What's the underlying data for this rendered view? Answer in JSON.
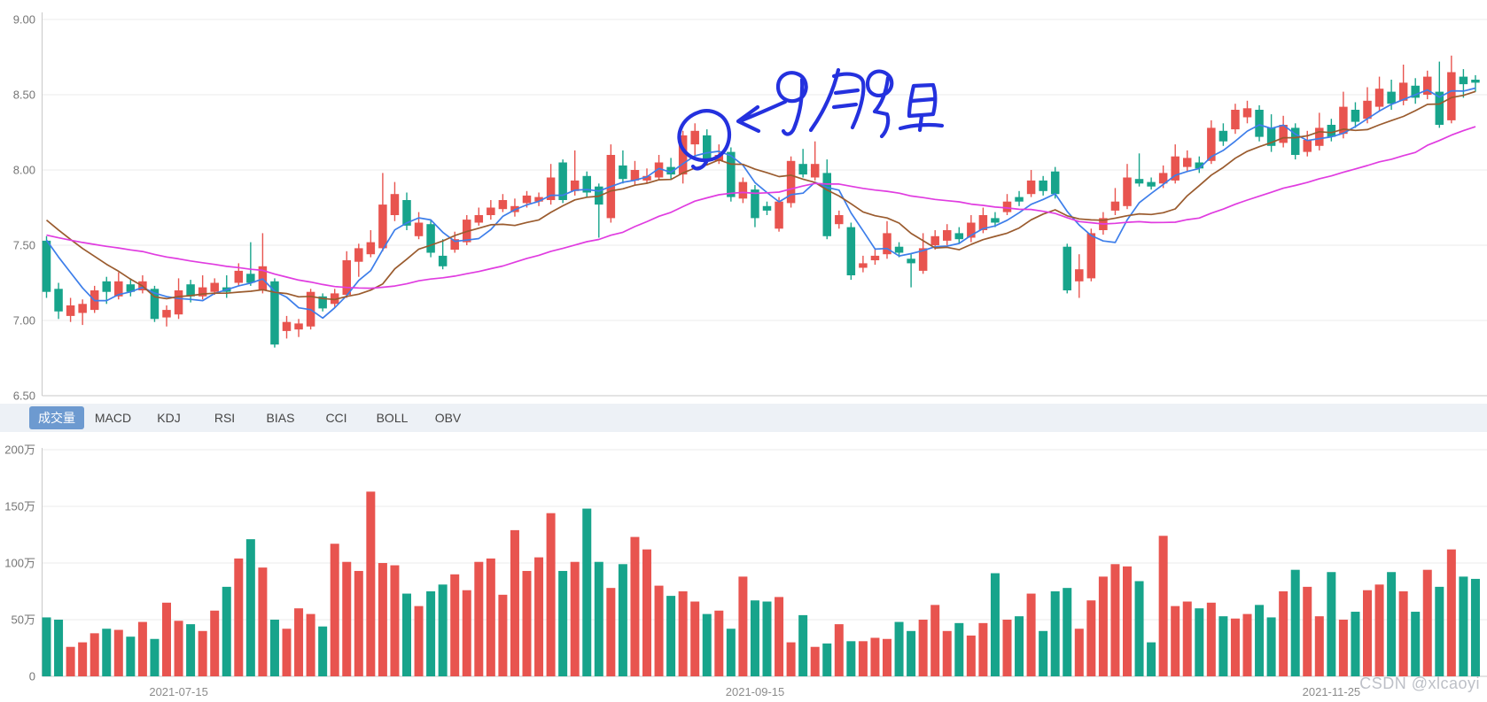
{
  "app": {
    "description": "stock K-line chart with volume pane"
  },
  "tabs": {
    "items": [
      {
        "id": "volume",
        "label": "成交量",
        "selected": true
      },
      {
        "id": "macd",
        "label": "MACD",
        "selected": false
      },
      {
        "id": "kdj",
        "label": "KDJ",
        "selected": false
      },
      {
        "id": "rsi",
        "label": "RSI",
        "selected": false
      },
      {
        "id": "bias",
        "label": "BIAS",
        "selected": false
      },
      {
        "id": "cci",
        "label": "CCI",
        "selected": false
      },
      {
        "id": "boll",
        "label": "BOLL",
        "selected": false
      },
      {
        "id": "obv",
        "label": "OBV",
        "selected": false
      }
    ],
    "selected_bg": "#6d9ad0",
    "strip_bg": "#edf1f6"
  },
  "annotation": {
    "text": "9月9日",
    "meaning": "hand-drawn circle and arrow pointing at the 2021-09-09 candle",
    "color": "#2431de"
  },
  "watermark": "CSDN @xlcaoyi",
  "colors": {
    "up": "#e8544f",
    "down": "#17a48b",
    "ma5": "#3d7eea",
    "ma10": "#9a5b2e",
    "ma30": "#e03ce0",
    "grid": "#ebebeb",
    "axis": "#c9c9c9",
    "tick_text": "#757575"
  },
  "chart_data": [
    {
      "type": "candlestick",
      "title": "",
      "ylabel": "",
      "ylim": [
        6.5,
        9.0
      ],
      "y_tick_labels": [
        "9.00",
        "8.50",
        "8.00",
        "7.50",
        "7.00",
        "6.50"
      ],
      "grid": true,
      "up_color": "#e8544f",
      "down_color": "#17a48b",
      "x_ticks": [
        {
          "index": 11,
          "label": "2021-07-15"
        },
        {
          "index": 59,
          "label": "2021-09-15"
        },
        {
          "index": 107,
          "label": "2021-11-25"
        }
      ],
      "ma_lines": [
        {
          "name": "MA5",
          "window": 5,
          "seed": 7.62,
          "color": "#3d7eea"
        },
        {
          "name": "MA10",
          "window": 10,
          "seed": 7.72,
          "color": "#9a5b2e"
        },
        {
          "name": "MA30",
          "window": 30,
          "seed": 7.58,
          "color": "#e03ce0"
        }
      ],
      "candles_format": [
        "open",
        "close",
        "low",
        "high"
      ],
      "candles": [
        [
          7.53,
          7.19,
          7.15,
          7.56
        ],
        [
          7.21,
          7.06,
          7.01,
          7.25
        ],
        [
          7.03,
          7.1,
          6.99,
          7.15
        ],
        [
          7.05,
          7.11,
          6.97,
          7.14
        ],
        [
          7.07,
          7.2,
          7.05,
          7.23
        ],
        [
          7.26,
          7.19,
          7.11,
          7.29
        ],
        [
          7.16,
          7.26,
          7.14,
          7.32
        ],
        [
          7.24,
          7.19,
          7.16,
          7.28
        ],
        [
          7.2,
          7.26,
          7.18,
          7.3
        ],
        [
          7.21,
          7.01,
          6.99,
          7.23
        ],
        [
          7.02,
          7.07,
          6.96,
          7.1
        ],
        [
          7.04,
          7.2,
          7.01,
          7.28
        ],
        [
          7.24,
          7.16,
          7.12,
          7.27
        ],
        [
          7.16,
          7.22,
          7.14,
          7.3
        ],
        [
          7.19,
          7.25,
          7.17,
          7.28
        ],
        [
          7.22,
          7.19,
          7.15,
          7.3
        ],
        [
          7.25,
          7.33,
          7.23,
          7.38
        ],
        [
          7.31,
          7.25,
          7.23,
          7.52
        ],
        [
          7.2,
          7.36,
          7.18,
          7.58
        ],
        [
          7.26,
          6.84,
          6.82,
          7.28
        ],
        [
          6.93,
          6.99,
          6.88,
          7.03
        ],
        [
          6.94,
          6.98,
          6.89,
          7.01
        ],
        [
          6.96,
          7.19,
          6.94,
          7.21
        ],
        [
          7.16,
          7.08,
          7.06,
          7.18
        ],
        [
          7.11,
          7.18,
          7.09,
          7.21
        ],
        [
          7.17,
          7.4,
          7.15,
          7.46
        ],
        [
          7.39,
          7.48,
          7.29,
          7.51
        ],
        [
          7.44,
          7.52,
          7.42,
          7.6
        ],
        [
          7.48,
          7.77,
          7.46,
          7.98
        ],
        [
          7.7,
          7.84,
          7.66,
          7.92
        ],
        [
          7.8,
          7.63,
          7.6,
          7.85
        ],
        [
          7.56,
          7.65,
          7.54,
          7.72
        ],
        [
          7.64,
          7.45,
          7.42,
          7.67
        ],
        [
          7.43,
          7.36,
          7.34,
          7.54
        ],
        [
          7.47,
          7.54,
          7.45,
          7.59
        ],
        [
          7.52,
          7.67,
          7.5,
          7.7
        ],
        [
          7.65,
          7.7,
          7.63,
          7.75
        ],
        [
          7.7,
          7.75,
          7.67,
          7.8
        ],
        [
          7.74,
          7.8,
          7.72,
          7.84
        ],
        [
          7.72,
          7.76,
          7.69,
          7.81
        ],
        [
          7.78,
          7.83,
          7.75,
          7.86
        ],
        [
          7.79,
          7.82,
          7.76,
          7.85
        ],
        [
          7.8,
          7.95,
          7.77,
          8.04
        ],
        [
          8.05,
          7.8,
          7.78,
          8.07
        ],
        [
          7.86,
          7.93,
          7.83,
          8.13
        ],
        [
          7.96,
          7.85,
          7.82,
          7.99
        ],
        [
          7.89,
          7.77,
          7.55,
          7.91
        ],
        [
          7.68,
          8.1,
          7.65,
          8.17
        ],
        [
          8.03,
          7.94,
          7.91,
          8.13
        ],
        [
          7.93,
          8.0,
          7.9,
          8.06
        ],
        [
          7.93,
          7.96,
          7.91,
          8.01
        ],
        [
          7.95,
          8.05,
          7.93,
          8.1
        ],
        [
          8.02,
          7.97,
          7.94,
          8.08
        ],
        [
          7.97,
          8.23,
          7.91,
          8.26
        ],
        [
          8.17,
          8.26,
          8.08,
          8.31
        ],
        [
          8.23,
          8.06,
          8.03,
          8.27
        ],
        [
          8.06,
          8.1,
          8.04,
          8.17
        ],
        [
          8.12,
          7.82,
          7.79,
          8.15
        ],
        [
          7.81,
          7.92,
          7.78,
          7.95
        ],
        [
          7.87,
          7.68,
          7.62,
          7.9
        ],
        [
          7.76,
          7.73,
          7.7,
          7.79
        ],
        [
          7.61,
          7.79,
          7.59,
          7.82
        ],
        [
          7.78,
          8.06,
          7.75,
          8.09
        ],
        [
          8.04,
          7.97,
          7.95,
          8.14
        ],
        [
          7.95,
          8.04,
          7.93,
          8.19
        ],
        [
          7.98,
          7.56,
          7.54,
          8.07
        ],
        [
          7.64,
          7.7,
          7.61,
          7.73
        ],
        [
          7.62,
          7.3,
          7.27,
          7.65
        ],
        [
          7.35,
          7.38,
          7.32,
          7.43
        ],
        [
          7.4,
          7.43,
          7.37,
          7.48
        ],
        [
          7.44,
          7.58,
          7.41,
          7.66
        ],
        [
          7.49,
          7.45,
          7.42,
          7.52
        ],
        [
          7.41,
          7.38,
          7.22,
          7.44
        ],
        [
          7.33,
          7.48,
          7.31,
          7.58
        ],
        [
          7.5,
          7.56,
          7.47,
          7.6
        ],
        [
          7.53,
          7.6,
          7.5,
          7.64
        ],
        [
          7.58,
          7.54,
          7.51,
          7.62
        ],
        [
          7.55,
          7.65,
          7.52,
          7.7
        ],
        [
          7.6,
          7.7,
          7.58,
          7.75
        ],
        [
          7.68,
          7.65,
          7.62,
          7.72
        ],
        [
          7.72,
          7.79,
          7.7,
          7.84
        ],
        [
          7.82,
          7.79,
          7.76,
          7.86
        ],
        [
          7.84,
          7.93,
          7.82,
          8.0
        ],
        [
          7.93,
          7.86,
          7.83,
          7.96
        ],
        [
          7.99,
          7.84,
          7.81,
          8.02
        ],
        [
          7.49,
          7.2,
          7.18,
          7.51
        ],
        [
          7.26,
          7.34,
          7.15,
          7.44
        ],
        [
          7.28,
          7.58,
          7.26,
          7.61
        ],
        [
          7.6,
          7.68,
          7.57,
          7.72
        ],
        [
          7.73,
          7.79,
          7.7,
          7.88
        ],
        [
          7.76,
          7.95,
          7.74,
          8.04
        ],
        [
          7.94,
          7.91,
          7.89,
          8.11
        ],
        [
          7.92,
          7.89,
          7.87,
          7.95
        ],
        [
          7.91,
          7.98,
          7.88,
          8.03
        ],
        [
          7.93,
          8.09,
          7.91,
          8.17
        ],
        [
          8.02,
          8.08,
          7.99,
          8.13
        ],
        [
          8.05,
          8.01,
          7.98,
          8.09
        ],
        [
          8.06,
          8.28,
          8.04,
          8.33
        ],
        [
          8.26,
          8.19,
          8.16,
          8.31
        ],
        [
          8.27,
          8.4,
          8.24,
          8.44
        ],
        [
          8.35,
          8.41,
          8.31,
          8.46
        ],
        [
          8.4,
          8.22,
          8.19,
          8.43
        ],
        [
          8.28,
          8.16,
          8.12,
          8.37
        ],
        [
          8.18,
          8.3,
          8.15,
          8.36
        ],
        [
          8.28,
          8.1,
          8.07,
          8.31
        ],
        [
          8.12,
          8.2,
          8.09,
          8.26
        ],
        [
          8.16,
          8.28,
          8.13,
          8.38
        ],
        [
          8.3,
          8.22,
          8.19,
          8.34
        ],
        [
          8.24,
          8.42,
          8.21,
          8.52
        ],
        [
          8.4,
          8.32,
          8.28,
          8.45
        ],
        [
          8.34,
          8.46,
          8.31,
          8.55
        ],
        [
          8.42,
          8.54,
          8.39,
          8.62
        ],
        [
          8.52,
          8.44,
          8.4,
          8.6
        ],
        [
          8.46,
          8.58,
          8.43,
          8.7
        ],
        [
          8.56,
          8.48,
          8.44,
          8.61
        ],
        [
          8.5,
          8.62,
          8.47,
          8.66
        ],
        [
          8.52,
          8.3,
          8.28,
          8.72
        ],
        [
          8.33,
          8.65,
          8.31,
          8.76
        ],
        [
          8.62,
          8.57,
          8.48,
          8.67
        ],
        [
          8.6,
          8.58,
          8.52,
          8.63
        ]
      ]
    },
    {
      "type": "bar",
      "name": "成交量",
      "unit": "万",
      "ylim": [
        0,
        200
      ],
      "y_tick_labels": [
        "200万",
        "150万",
        "100万",
        "50万",
        "0"
      ],
      "grid": true,
      "color_rule": "red if close>=open else green, matching candle of same index",
      "values": [
        52,
        50,
        26,
        30,
        38,
        42,
        41,
        35,
        48,
        33,
        65,
        49,
        46,
        40,
        58,
        79,
        104,
        121,
        96,
        50,
        42,
        60,
        55,
        44,
        117,
        101,
        93,
        163,
        100,
        98,
        73,
        62,
        75,
        81,
        90,
        76,
        101,
        104,
        72,
        129,
        93,
        105,
        144,
        93,
        101,
        148,
        101,
        78,
        99,
        123,
        112,
        80,
        71,
        75,
        66,
        55,
        58,
        42,
        88,
        67,
        66,
        70,
        30,
        54,
        26,
        29,
        46,
        31,
        31,
        34,
        33,
        48,
        40,
        50,
        63,
        40,
        47,
        36,
        47,
        91,
        50,
        53,
        73,
        40,
        75,
        78,
        42,
        67,
        88,
        99,
        97,
        84,
        30,
        124,
        62,
        66,
        60,
        65,
        53,
        51,
        55,
        63,
        52,
        75,
        94,
        79,
        53,
        92,
        50,
        57,
        76,
        81,
        92,
        75,
        57,
        94,
        79,
        112,
        88,
        86
      ]
    }
  ]
}
